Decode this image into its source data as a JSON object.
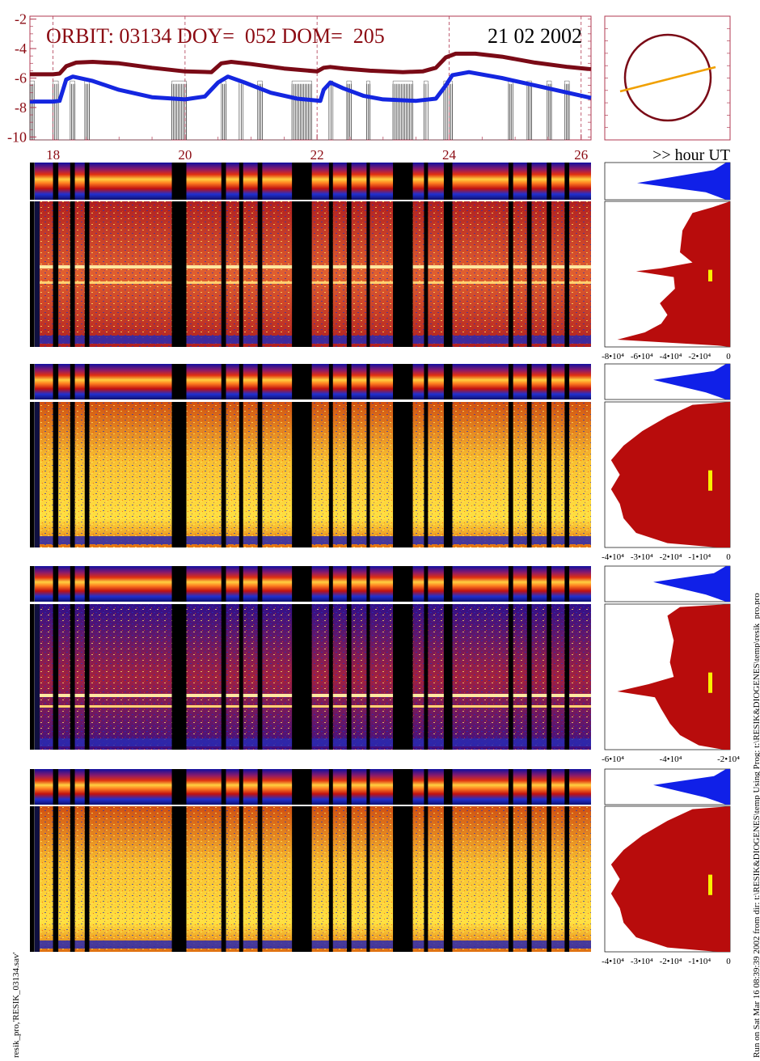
{
  "header": {
    "orbit_text": "ORBIT: 03134 DOY=  052 DOM=  205",
    "date_text": "21 02 2002"
  },
  "colors": {
    "frame": "#b03a52",
    "header_red": "#8b0a12",
    "flux_red": "#7a0a16",
    "flux_blue": "#1426e0",
    "orbit_circle": "#7a0a16",
    "orbit_line": "#f0a000",
    "hist_red": "#b80c0c",
    "hist_blue": "#1020e8",
    "marker_yellow": "#f8f000"
  },
  "chart_data": [
    {
      "type": "line",
      "name": "orbit-lightcurve",
      "xlim": [
        17.65,
        26.15
      ],
      "ylim": [
        -10.2,
        -1.8
      ],
      "x_ticks": [
        "18",
        "20",
        "22",
        "24",
        "26"
      ],
      "y_ticks": [
        "-2",
        "-4",
        "-6",
        "-8",
        "-10"
      ],
      "x_unit_label": ">> hour UT",
      "vertical_markers": [
        18.0,
        20.0,
        22.0,
        24.0,
        26.0
      ],
      "series": [
        {
          "color": "#7a0a16",
          "points": [
            [
              17.65,
              -5.75
            ],
            [
              18.0,
              -5.75
            ],
            [
              18.1,
              -5.7
            ],
            [
              18.2,
              -5.2
            ],
            [
              18.35,
              -4.95
            ],
            [
              18.6,
              -4.9
            ],
            [
              19.0,
              -5.0
            ],
            [
              19.5,
              -5.3
            ],
            [
              20.0,
              -5.55
            ],
            [
              20.4,
              -5.6
            ],
            [
              20.55,
              -5.0
            ],
            [
              20.7,
              -4.9
            ],
            [
              21.0,
              -5.05
            ],
            [
              21.5,
              -5.35
            ],
            [
              22.0,
              -5.55
            ],
            [
              22.1,
              -5.3
            ],
            [
              22.2,
              -5.25
            ],
            [
              22.4,
              -5.35
            ],
            [
              22.8,
              -5.5
            ],
            [
              23.3,
              -5.6
            ],
            [
              23.6,
              -5.55
            ],
            [
              23.8,
              -5.3
            ],
            [
              23.95,
              -4.6
            ],
            [
              24.1,
              -4.35
            ],
            [
              24.4,
              -4.35
            ],
            [
              24.8,
              -4.55
            ],
            [
              25.3,
              -4.95
            ],
            [
              25.8,
              -5.25
            ],
            [
              26.15,
              -5.4
            ]
          ]
        },
        {
          "color": "#1426e0",
          "points": [
            [
              17.65,
              -7.6
            ],
            [
              18.0,
              -7.6
            ],
            [
              18.1,
              -7.55
            ],
            [
              18.2,
              -6.1
            ],
            [
              18.3,
              -5.9
            ],
            [
              18.6,
              -6.2
            ],
            [
              19.0,
              -6.8
            ],
            [
              19.5,
              -7.3
            ],
            [
              20.0,
              -7.45
            ],
            [
              20.3,
              -7.25
            ],
            [
              20.5,
              -6.3
            ],
            [
              20.65,
              -5.9
            ],
            [
              20.9,
              -6.3
            ],
            [
              21.3,
              -7.0
            ],
            [
              21.7,
              -7.4
            ],
            [
              22.05,
              -7.55
            ],
            [
              22.1,
              -6.8
            ],
            [
              22.2,
              -6.3
            ],
            [
              22.4,
              -6.7
            ],
            [
              22.7,
              -7.2
            ],
            [
              23.0,
              -7.45
            ],
            [
              23.5,
              -7.55
            ],
            [
              23.8,
              -7.4
            ],
            [
              23.95,
              -6.5
            ],
            [
              24.05,
              -5.8
            ],
            [
              24.3,
              -5.6
            ],
            [
              24.8,
              -6.0
            ],
            [
              25.3,
              -6.5
            ],
            [
              25.8,
              -7.0
            ],
            [
              26.15,
              -7.35
            ]
          ]
        }
      ]
    },
    {
      "type": "line",
      "name": "orbit-geometry",
      "circle": true,
      "track": [
        [
          0.12,
          0.34
        ],
        [
          0.95,
          0.52
        ]
      ]
    },
    {
      "type": "heatmap",
      "name": "spectrogram-band-1",
      "xlim": [
        17.65,
        26.15
      ],
      "hist_ticks": [
        "-8•10⁴",
        "-6•10⁴",
        "-4•10⁴",
        "-2•10⁴",
        "0"
      ]
    },
    {
      "type": "heatmap",
      "name": "spectrogram-band-2",
      "xlim": [
        17.65,
        26.15
      ],
      "hist_ticks": [
        "-4•10⁴",
        "-3•10⁴",
        "-2•10⁴",
        "-1•10⁴",
        "0"
      ]
    },
    {
      "type": "heatmap",
      "name": "spectrogram-band-3",
      "xlim": [
        17.65,
        26.15
      ],
      "hist_ticks": [
        "-6•10⁴",
        "-4•10⁴",
        "-2•10⁴"
      ]
    },
    {
      "type": "heatmap",
      "name": "spectrogram-band-4",
      "xlim": [
        17.65,
        26.15
      ],
      "hist_ticks": [
        "-4•10⁴",
        "-3•10⁴",
        "-2•10⁴",
        "-1•10⁴",
        "0"
      ]
    }
  ],
  "data_gaps_hours": [
    [
      17.65,
      17.72
    ],
    [
      18.0,
      18.08
    ],
    [
      18.26,
      18.33
    ],
    [
      18.48,
      18.55
    ],
    [
      19.8,
      20.02
    ],
    [
      20.55,
      20.62
    ],
    [
      20.82,
      20.88
    ],
    [
      21.1,
      21.17
    ],
    [
      21.62,
      21.92
    ],
    [
      22.18,
      22.24
    ],
    [
      22.45,
      22.52
    ],
    [
      22.75,
      22.8
    ],
    [
      23.15,
      23.45
    ],
    [
      23.62,
      23.68
    ],
    [
      23.92,
      24.05
    ],
    [
      24.9,
      24.97
    ],
    [
      25.18,
      25.25
    ],
    [
      25.48,
      25.55
    ],
    [
      25.75,
      25.82
    ]
  ],
  "captions": {
    "left": "resik_pro,'RESIK_03134.sav'",
    "right": "Run on Sat Mar 16 08:39:39 2002  from dir: t:\\RESIK&DIOGENES\\temp Using Prog: t:\\RESIK&DIOGENES\\temp\\resik_pro.pro"
  }
}
